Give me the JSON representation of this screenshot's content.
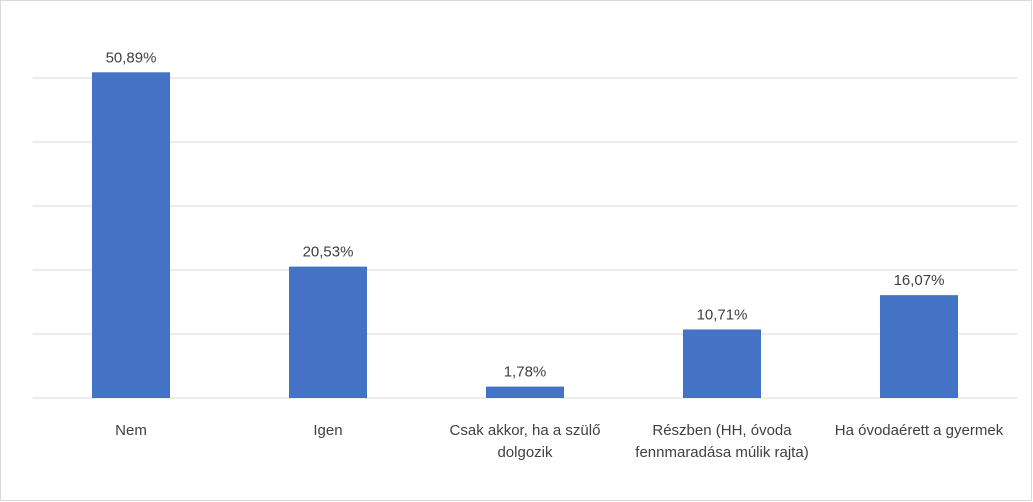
{
  "chart_data": {
    "type": "bar",
    "categories": [
      "Nem",
      "Igen",
      "Csak akkor, ha a szülő dolgozik",
      "Részben (HH, óvoda fennmaradása múlik rajta)",
      "Ha óvodaérett a gyermek"
    ],
    "values": [
      50.89,
      20.53,
      1.78,
      10.71,
      16.07
    ],
    "value_labels": [
      "50,89%",
      "20,53%",
      "1,78%",
      "10,71%",
      "16,07%"
    ],
    "color": "#4472c4",
    "ylim": [
      0,
      60
    ],
    "yticks": [
      0,
      10,
      20,
      30,
      40,
      50,
      60
    ],
    "grid": true,
    "show_ytick_labels": false
  }
}
